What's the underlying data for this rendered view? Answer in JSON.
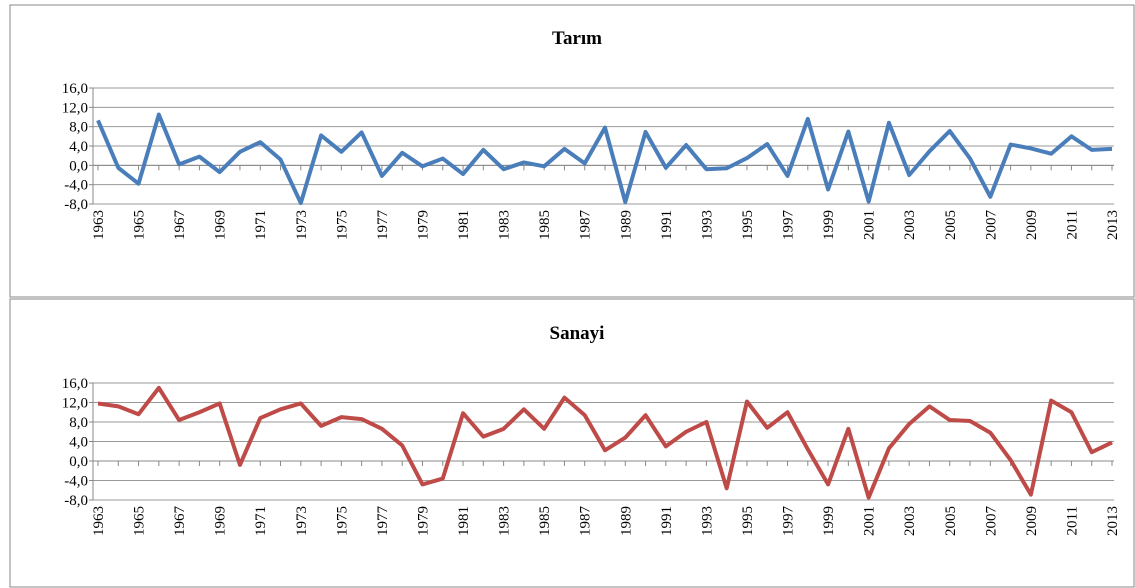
{
  "chart_data": [
    {
      "type": "line",
      "title": "Tarım",
      "categories": [
        "1963",
        null,
        "1965",
        null,
        "1967",
        null,
        "1969",
        null,
        "1971",
        null,
        "1973",
        null,
        "1975",
        null,
        "1977",
        null,
        "1979",
        null,
        "1981",
        null,
        "1983",
        null,
        "1985",
        null,
        "1987",
        null,
        "1989",
        null,
        "1991",
        null,
        "1993",
        null,
        "1995",
        null,
        "1997",
        null,
        "1999",
        null,
        "2001",
        null,
        "2003",
        null,
        "2005",
        null,
        "2007",
        null,
        "2009",
        null,
        "2011",
        null,
        "2013"
      ],
      "series": [
        {
          "name": "Tarım",
          "color": "#4a7ebb",
          "values": [
            9.3,
            -0.5,
            -3.8,
            10.5,
            0.2,
            1.8,
            -1.4,
            2.8,
            4.8,
            1.2,
            -7.8,
            6.2,
            2.8,
            6.8,
            -2.2,
            2.6,
            -0.2,
            1.4,
            -1.8,
            3.2,
            -0.8,
            0.6,
            -0.2,
            3.4,
            0.4,
            7.8,
            -7.6,
            6.9,
            -0.5,
            4.2,
            -0.8,
            -0.6,
            1.5,
            4.4,
            -2.2,
            9.6,
            -5.0,
            7.0,
            -7.5,
            8.8,
            -2.0,
            2.9,
            7.1,
            1.4,
            -6.5,
            4.3,
            3.5,
            2.4,
            6.0,
            3.2,
            3.4
          ]
        }
      ],
      "ylim": [
        -8,
        16
      ],
      "yticks": [
        {
          "value": 16,
          "label": "16,0"
        },
        {
          "value": 12,
          "label": "12,0"
        },
        {
          "value": 8,
          "label": "8,0"
        },
        {
          "value": 4,
          "label": "4,0"
        },
        {
          "value": 0,
          "label": "0,0"
        },
        {
          "value": -4,
          "label": "-4,0"
        },
        {
          "value": -8,
          "label": "-8,0"
        }
      ],
      "grid": true
    },
    {
      "type": "line",
      "title": "Sanayi",
      "categories": [
        "1963",
        null,
        "1965",
        null,
        "1967",
        null,
        "1969",
        null,
        "1971",
        null,
        "1973",
        null,
        "1975",
        null,
        "1977",
        null,
        "1979",
        null,
        "1981",
        null,
        "1983",
        null,
        "1985",
        null,
        "1987",
        null,
        "1989",
        null,
        "1991",
        null,
        "1993",
        null,
        "1995",
        null,
        "1997",
        null,
        "1999",
        null,
        "2001",
        null,
        "2003",
        null,
        "2005",
        null,
        "2007",
        null,
        "2009",
        null,
        "2011",
        null,
        "2013"
      ],
      "series": [
        {
          "name": "Sanayi",
          "color": "#be4b48",
          "values": [
            11.8,
            11.2,
            9.6,
            15.0,
            8.4,
            10.0,
            11.8,
            -0.8,
            8.8,
            10.6,
            11.8,
            7.2,
            9.0,
            8.6,
            6.6,
            3.2,
            -4.8,
            -3.6,
            9.8,
            5.0,
            6.6,
            10.6,
            6.6,
            13.0,
            9.4,
            2.2,
            4.8,
            9.4,
            3.0,
            6.0,
            8.0,
            -5.6,
            12.2,
            6.8,
            10.0,
            2.4,
            -4.8,
            6.6,
            -7.5,
            2.6,
            7.6,
            11.2,
            8.4,
            8.2,
            5.8,
            0.2,
            -6.9,
            12.4,
            10.0,
            1.8,
            3.8
          ]
        }
      ],
      "ylim": [
        -8,
        16
      ],
      "yticks": [
        {
          "value": 16,
          "label": "16,0"
        },
        {
          "value": 12,
          "label": "12,0"
        },
        {
          "value": 8,
          "label": "8,0"
        },
        {
          "value": 4,
          "label": "4,0"
        },
        {
          "value": 0,
          "label": "0,0"
        },
        {
          "value": -4,
          "label": "-4,0"
        },
        {
          "value": -8,
          "label": "-8,0"
        }
      ],
      "grid": true
    }
  ]
}
